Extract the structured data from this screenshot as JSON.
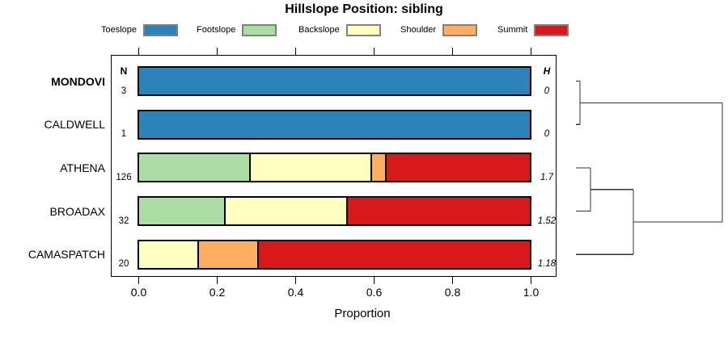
{
  "title": "Hillslope Position: sibling",
  "legend": {
    "items": [
      {
        "label": "Toeslope",
        "color": "#2B83BA"
      },
      {
        "label": "Footslope",
        "color": "#ABDDA4"
      },
      {
        "label": "Backslope",
        "color": "#FFFFBF"
      },
      {
        "label": "Shoulder",
        "color": "#FDAE61"
      },
      {
        "label": "Summit",
        "color": "#D7191C"
      }
    ]
  },
  "columns": {
    "n_header": "N",
    "h_header": "H"
  },
  "axis": {
    "label": "Proportion",
    "ticks": [
      "0.0",
      "0.2",
      "0.4",
      "0.6",
      "0.8",
      "1.0"
    ]
  },
  "colors": {
    "bar_border": "#000000",
    "swatch_border": "#808080",
    "dendrogram_line": "#333333"
  },
  "chart_data": {
    "type": "bar",
    "stacked": true,
    "orientation": "horizontal",
    "title": "Hillslope Position: sibling",
    "xlabel": "Proportion",
    "xlim": [
      0,
      1
    ],
    "x_ticks": [
      0.0,
      0.2,
      0.4,
      0.6,
      0.8,
      1.0
    ],
    "series_names": [
      "Toeslope",
      "Footslope",
      "Backslope",
      "Shoulder",
      "Summit"
    ],
    "series_colors": [
      "#2B83BA",
      "#ABDDA4",
      "#FFFFBF",
      "#FDAE61",
      "#D7191C"
    ],
    "rows": [
      {
        "label": "MONDOVI",
        "emphasis": true,
        "n": "3",
        "h": "0",
        "values": [
          1,
          0,
          0,
          0,
          0
        ]
      },
      {
        "label": "CALDWELL",
        "emphasis": false,
        "n": "1",
        "h": "0",
        "values": [
          1,
          0,
          0,
          0,
          0
        ]
      },
      {
        "label": "ATHENA",
        "emphasis": false,
        "n": "126",
        "h": "1.7",
        "values": [
          0,
          0.286,
          0.31,
          0.032,
          0.372
        ]
      },
      {
        "label": "BROADAX",
        "emphasis": false,
        "n": "32",
        "h": "1.52",
        "values": [
          0,
          0.219,
          0.312,
          0,
          0.469
        ]
      },
      {
        "label": "CAMASPATCH",
        "emphasis": false,
        "n": "20",
        "h": "1.18",
        "values": [
          0,
          0,
          0.15,
          0.15,
          0.7
        ]
      }
    ],
    "dendrogram": {
      "leaf_order": [
        "MONDOVI",
        "CALDWELL",
        "ATHENA",
        "BROADAX",
        "CAMASPATCH"
      ],
      "merge_heights": [
        0.028,
        0.099,
        0.392,
        1.0
      ],
      "segments": [
        {
          "x1": 0,
          "y1": 0,
          "x2": 0.028,
          "y2": 0
        },
        {
          "x1": 0,
          "y1": 1,
          "x2": 0.028,
          "y2": 1
        },
        {
          "x1": 0.028,
          "y1": 0,
          "x2": 0.028,
          "y2": 1
        },
        {
          "x1": 0.028,
          "y1": 0.5,
          "x2": 1,
          "y2": 0.5
        },
        {
          "x1": 0,
          "y1": 2,
          "x2": 0.099,
          "y2": 2
        },
        {
          "x1": 0,
          "y1": 3,
          "x2": 0.099,
          "y2": 3
        },
        {
          "x1": 0.099,
          "y1": 2,
          "x2": 0.099,
          "y2": 3
        },
        {
          "x1": 0.099,
          "y1": 2.5,
          "x2": 0.392,
          "y2": 2.5
        },
        {
          "x1": 0,
          "y1": 4,
          "x2": 0.392,
          "y2": 4
        },
        {
          "x1": 0.392,
          "y1": 2.5,
          "x2": 0.392,
          "y2": 4
        },
        {
          "x1": 0.392,
          "y1": 3.25,
          "x2": 1,
          "y2": 3.25
        },
        {
          "x1": 1,
          "y1": 0.5,
          "x2": 1,
          "y2": 3.25
        }
      ]
    }
  }
}
